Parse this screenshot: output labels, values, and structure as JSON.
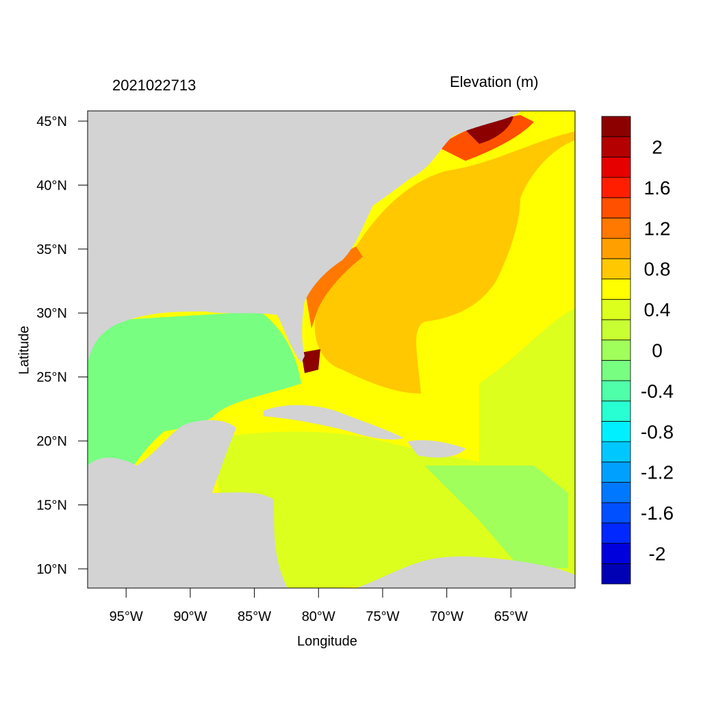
{
  "header": {
    "timestamp": "2021022713",
    "variable_title": "Elevation (m)"
  },
  "axes": {
    "xlabel": "Longitude",
    "ylabel": "Latitude",
    "xticks": [
      {
        "value": -95,
        "label": "95°W"
      },
      {
        "value": -90,
        "label": "90°W"
      },
      {
        "value": -85,
        "label": "85°W"
      },
      {
        "value": -80,
        "label": "80°W"
      },
      {
        "value": -75,
        "label": "75°W"
      },
      {
        "value": -70,
        "label": "70°W"
      },
      {
        "value": -65,
        "label": "65°W"
      }
    ],
    "yticks": [
      {
        "value": 45,
        "label": "45°N"
      },
      {
        "value": 40,
        "label": "40°N"
      },
      {
        "value": 35,
        "label": "35°N"
      },
      {
        "value": 30,
        "label": "30°N"
      },
      {
        "value": 25,
        "label": "25°N"
      },
      {
        "value": 20,
        "label": "20°N"
      },
      {
        "value": 15,
        "label": "15°N"
      },
      {
        "value": 10,
        "label": "10°N"
      }
    ],
    "lon_range": [
      -98,
      -60
    ],
    "lat_range": [
      8.5,
      45.8
    ]
  },
  "colorbar": {
    "levels": [
      {
        "color": "#0000b4"
      },
      {
        "color": "#0000dc"
      },
      {
        "color": "#0028ff"
      },
      {
        "color": "#0050ff"
      },
      {
        "color": "#0078ff"
      },
      {
        "color": "#00a0ff"
      },
      {
        "color": "#00c8ff"
      },
      {
        "color": "#00f0ff"
      },
      {
        "color": "#28ffd2"
      },
      {
        "color": "#50ffaa"
      },
      {
        "color": "#78ff82"
      },
      {
        "color": "#a0ff5a"
      },
      {
        "color": "#c8ff32"
      },
      {
        "color": "#dcff1e"
      },
      {
        "color": "#ffff00"
      },
      {
        "color": "#ffc800"
      },
      {
        "color": "#ffa000"
      },
      {
        "color": "#ff7800"
      },
      {
        "color": "#ff5000"
      },
      {
        "color": "#ff1e00"
      },
      {
        "color": "#e60000"
      },
      {
        "color": "#b40000"
      },
      {
        "color": "#8c0000"
      }
    ],
    "labels": [
      "2",
      "1.6",
      "1.2",
      "0.8",
      "0.4",
      "0",
      "-0.4",
      "-0.8",
      "-1.2",
      "-1.6",
      "-2"
    ]
  },
  "map": {
    "land_color": "#d3d3d3"
  }
}
